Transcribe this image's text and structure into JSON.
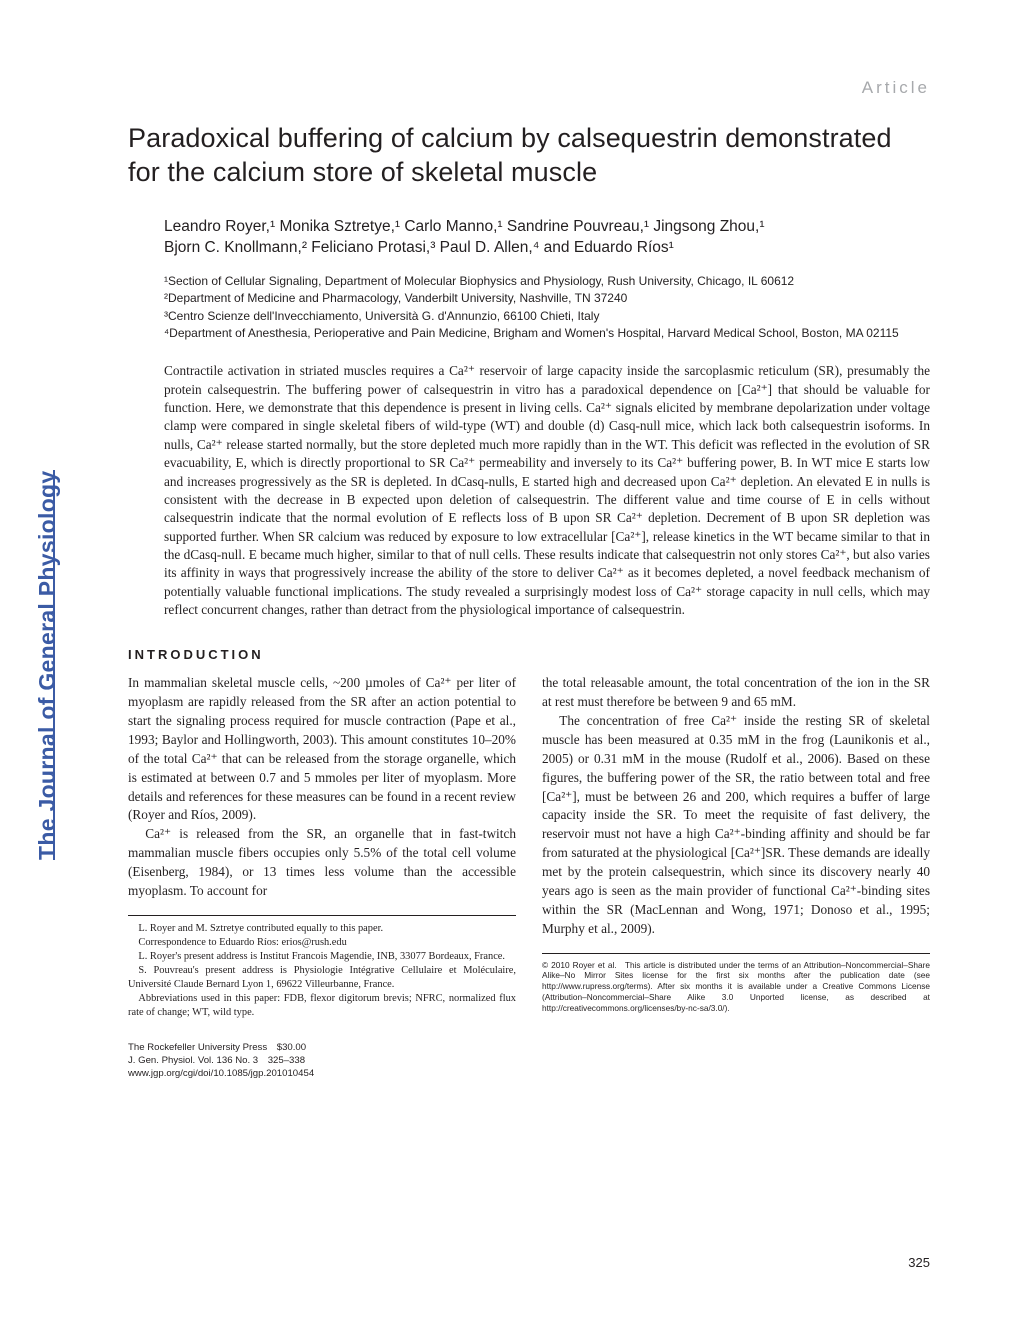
{
  "article_label": "Article",
  "title": "Paradoxical buffering of calcium by calsequestrin demonstrated for the calcium store of skeletal muscle",
  "authors_line1": "Leandro Royer,¹ Monika Sztretye,¹ Carlo Manno,¹ Sandrine Pouvreau,¹ Jingsong Zhou,¹",
  "authors_line2": "Bjorn C. Knollmann,² Feliciano Protasi,³ Paul D. Allen,⁴ and Eduardo Ríos¹",
  "affil1": "¹Section of Cellular Signaling, Department of Molecular Biophysics and Physiology, Rush University, Chicago, IL 60612",
  "affil2": "²Department of Medicine and Pharmacology, Vanderbilt University, Nashville, TN 37240",
  "affil3": "³Centro Scienze dell'Invecchiamento, Università G. d'Annunzio, 66100 Chieti, Italy",
  "affil4": "⁴Department of Anesthesia, Perioperative and Pain Medicine, Brigham and Women's Hospital, Harvard Medical School, Boston, MA 02115",
  "abstract": "Contractile activation in striated muscles requires a Ca²⁺ reservoir of large capacity inside the sarcoplasmic reticulum (SR), presumably the protein calsequestrin. The buffering power of calsequestrin in vitro has a paradoxical dependence on [Ca²⁺] that should be valuable for function. Here, we demonstrate that this dependence is present in living cells. Ca²⁺ signals elicited by membrane depolarization under voltage clamp were compared in single skeletal fibers of wild-type (WT) and double (d) Casq-null mice, which lack both calsequestrin isoforms. In nulls, Ca²⁺ release started normally, but the store depleted much more rapidly than in the WT. This deficit was reflected in the evolution of SR evacuability, E, which is directly proportional to SR Ca²⁺ permeability and inversely to its Ca²⁺ buffering power, B. In WT mice E starts low and increases progressively as the SR is depleted. In dCasq-nulls, E started high and decreased upon Ca²⁺ depletion. An elevated E in nulls is consistent with the decrease in B expected upon deletion of calsequestrin. The different value and time course of E in cells without calsequestrin indicate that the normal evolution of E reflects loss of B upon SR Ca²⁺ depletion. Decrement of B upon SR depletion was supported further. When SR calcium was reduced by exposure to low extracellular [Ca²⁺], release kinetics in the WT became similar to that in the dCasq-null. E became much higher, similar to that of null cells. These results indicate that calsequestrin not only stores Ca²⁺, but also varies its affinity in ways that progressively increase the ability of the store to deliver Ca²⁺ as it becomes depleted, a novel feedback mechanism of potentially valuable functional implications. The study revealed a surprisingly modest loss of Ca²⁺ storage capacity in null cells, which may reflect concurrent changes, rather than detract from the physiological importance of calsequestrin.",
  "intro_heading": "INTRODUCTION",
  "col1_p1": "In mammalian skeletal muscle cells, ~200 µmoles of Ca²⁺ per liter of myoplasm are rapidly released from the SR after an action potential to start the signaling process required for muscle contraction (Pape et al., 1993; Baylor and Hollingworth, 2003). This amount constitutes 10–20% of the total Ca²⁺ that can be released from the storage organelle, which is estimated at between 0.7 and 5 mmoles per liter of myoplasm. More details and references for these measures can be found in a recent review (Royer and Ríos, 2009).",
  "col1_p2": "Ca²⁺ is released from the SR, an organelle that in fast-twitch mammalian muscle fibers occupies only 5.5% of the total cell volume (Eisenberg, 1984), or 13 times less volume than the accessible myoplasm. To account for",
  "col2_p1": "the total releasable amount, the total concentration of the ion in the SR at rest must therefore be between 9 and 65 mM.",
  "col2_p2": "The concentration of free Ca²⁺ inside the resting SR of skeletal muscle has been measured at 0.35 mM in the frog (Launikonis et al., 2005) or 0.31 mM in the mouse (Rudolf et al., 2006). Based on these figures, the buffering power of the SR, the ratio between total and free [Ca²⁺], must be between 26 and 200, which requires a buffer of large capacity inside the SR. To meet the requisite of fast delivery, the reservoir must not have a high Ca²⁺-binding affinity and should be far from saturated at the physiological [Ca²⁺]SR. These demands are ideally met by the protein calsequestrin, which since its discovery nearly 40 years ago is seen as the main provider of functional Ca²⁺-binding sites within the SR (MacLennan and Wong, 1971; Donoso et al., 1995; Murphy et al., 2009).",
  "fn1": "L. Royer and M. Sztretye contributed equally to this paper.",
  "fn2": "Correspondence to Eduardo Ríos: erios@rush.edu",
  "fn3": "L. Royer's present address is Institut Francois Magendie, INB, 33077 Bordeaux, France.",
  "fn4": "S. Pouvreau's present address is Physiologie Intégrative Cellulaire et Moléculaire, Université Claude Bernard Lyon 1, 69622 Villeurbanne, France.",
  "fn5": "Abbreviations used in this paper: FDB, flexor digitorum brevis; NFRC, normalized flux rate of change; WT, wild type.",
  "license": "© 2010 Royer et al. This article is distributed under the terms of an Attribution–Noncommercial–Share Alike–No Mirror Sites license for the first six months after the publication date (see http://www.rupress.org/terms). After six months it is available under a Creative Commons License (Attribution–Noncommercial–Share Alike 3.0 Unported license, as described at http://creativecommons.org/licenses/by-nc-sa/3.0/).",
  "pubinfo1": "The Rockefeller University Press $30.00",
  "pubinfo2": "J. Gen. Physiol. Vol. 136 No. 3 325–338",
  "pubinfo3": "www.jgp.org/cgi/doi/10.1085/jgp.201010454",
  "page_number": "325",
  "sidebar": "The Journal of General Physiology"
}
